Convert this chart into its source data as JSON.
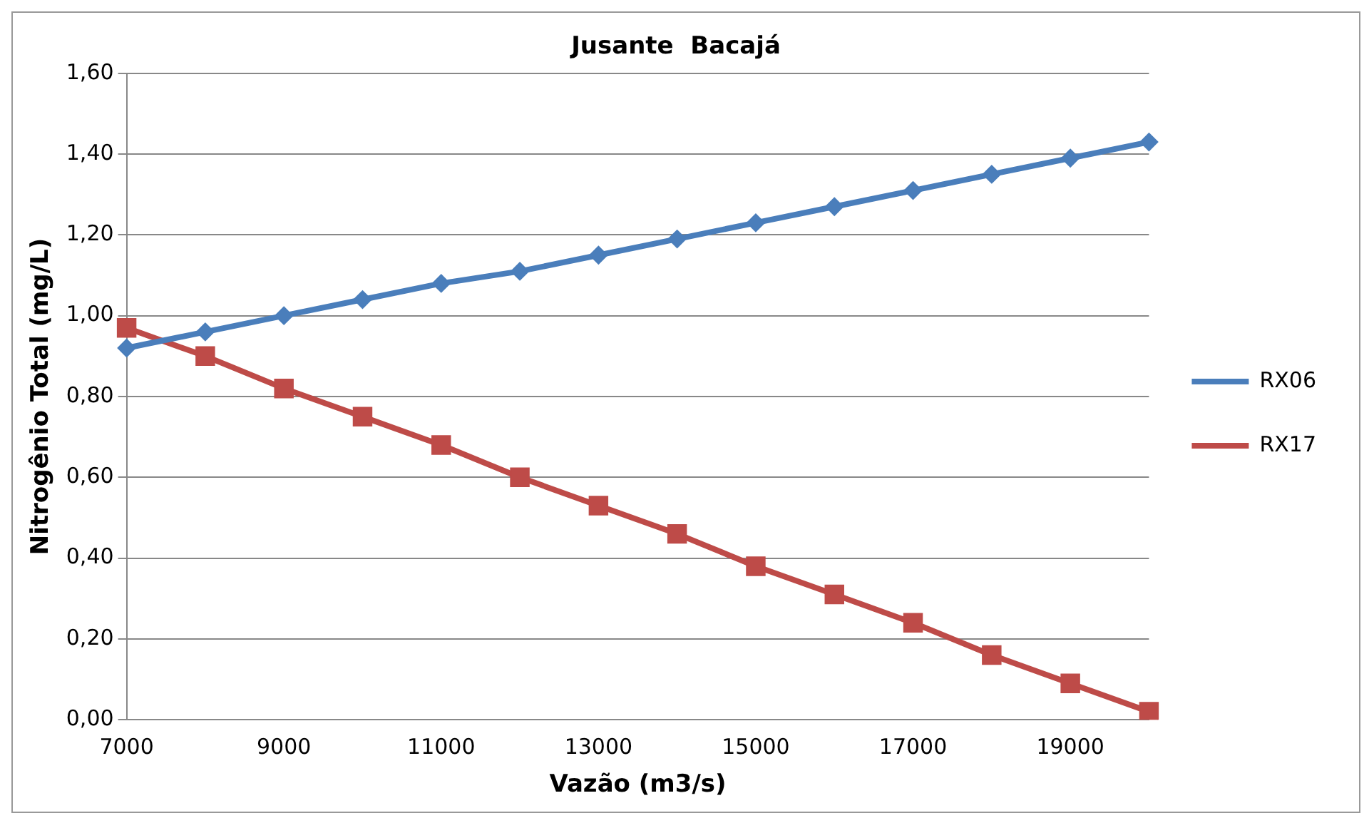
{
  "chart_data": {
    "type": "line",
    "title": "Jusante  Bacajá",
    "xlabel": "Vazão (m3/s)",
    "ylabel": "Nitrogênio Total (mg/L)",
    "categories": [
      "7000",
      null,
      "9000",
      null,
      "11000",
      null,
      "13000",
      null,
      "15000",
      null,
      "17000",
      null,
      "19000",
      null
    ],
    "series": [
      {
        "name": "RX06",
        "color": "#4a7ebb",
        "marker": "diamond",
        "values": [
          0.92,
          0.96,
          1.0,
          1.04,
          1.08,
          1.11,
          1.15,
          1.19,
          1.23,
          1.27,
          1.31,
          1.35,
          1.39,
          1.43
        ]
      },
      {
        "name": "RX17",
        "color": "#be4b48",
        "marker": "square",
        "values": [
          0.97,
          0.9,
          0.82,
          0.75,
          0.68,
          0.6,
          0.53,
          0.46,
          0.38,
          0.31,
          0.24,
          0.16,
          0.09,
          0.02
        ]
      }
    ],
    "ylim": [
      0,
      1.6
    ],
    "yticks": [
      {
        "value": 0,
        "label": "0,00"
      },
      {
        "value": 0.2,
        "label": "0,20"
      },
      {
        "value": 0.4,
        "label": "0,40"
      },
      {
        "value": 0.6,
        "label": "0,60"
      },
      {
        "value": 0.8,
        "label": "0,80"
      },
      {
        "value": 1,
        "label": "1,00"
      },
      {
        "value": 1.2,
        "label": "1,20"
      },
      {
        "value": 1.4,
        "label": "1,40"
      },
      {
        "value": 1.6,
        "label": "1,60"
      }
    ],
    "grid": "y",
    "legend": "right"
  }
}
